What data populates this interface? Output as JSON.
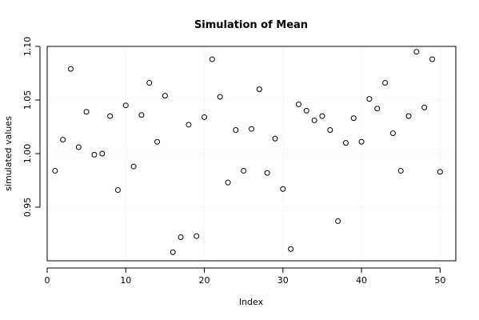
{
  "chart_data": {
    "type": "scatter",
    "title": "Simulation of Mean",
    "xlabel": "Index",
    "ylabel": "simulated values",
    "x": [
      1,
      2,
      3,
      4,
      5,
      6,
      7,
      8,
      9,
      10,
      11,
      12,
      13,
      14,
      15,
      16,
      17,
      18,
      19,
      20,
      21,
      22,
      23,
      24,
      25,
      26,
      27,
      28,
      29,
      30,
      31,
      32,
      33,
      34,
      35,
      36,
      37,
      38,
      39,
      40,
      41,
      42,
      43,
      44,
      45,
      46,
      47,
      48,
      49,
      50
    ],
    "y": [
      0.984,
      1.013,
      1.079,
      1.006,
      1.039,
      0.999,
      1.0,
      1.035,
      0.966,
      1.045,
      0.988,
      1.036,
      1.066,
      1.011,
      1.054,
      0.908,
      0.922,
      1.027,
      0.923,
      1.034,
      1.088,
      1.053,
      0.973,
      1.022,
      0.984,
      1.023,
      1.06,
      0.982,
      1.014,
      0.967,
      0.911,
      1.046,
      1.04,
      1.031,
      1.035,
      1.022,
      0.937,
      1.01,
      1.033,
      1.011,
      1.051,
      1.042,
      1.066,
      1.019,
      0.984,
      1.035,
      1.095,
      1.043,
      1.088,
      0.983
    ],
    "xlim": [
      0,
      52
    ],
    "ylim": [
      0.9,
      1.1
    ],
    "x_ticks": [
      0,
      10,
      20,
      30,
      40,
      50
    ],
    "y_ticks": [
      0.95,
      1.0,
      1.05,
      1.1
    ],
    "x_tick_labels": [
      "0",
      "10",
      "20",
      "30",
      "40",
      "50"
    ],
    "y_tick_labels": [
      "0.95",
      "1.00",
      "1.05",
      "1.10"
    ],
    "grid": true,
    "marker": "open-circle"
  }
}
